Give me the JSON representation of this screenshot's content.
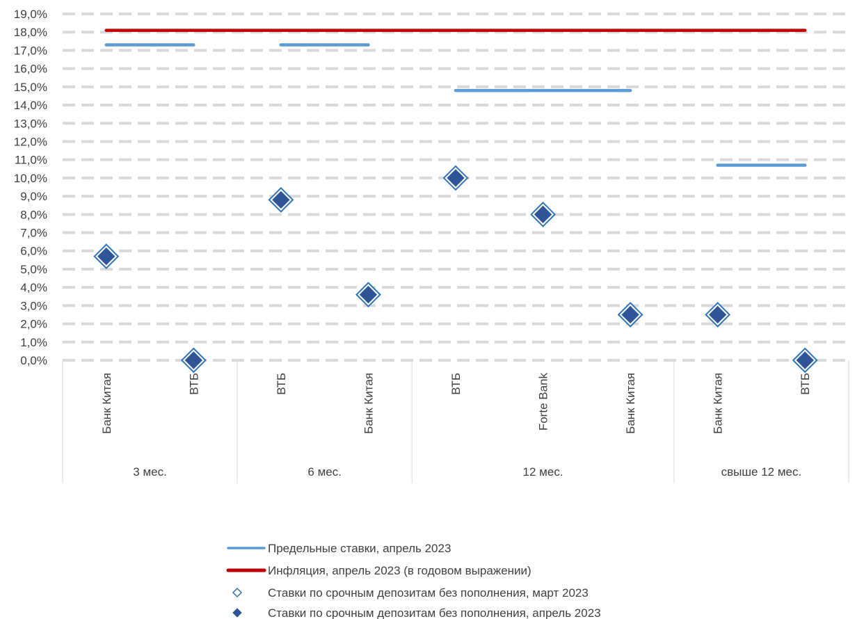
{
  "chart_data": {
    "type": "scatter",
    "ylim": [
      0,
      19
    ],
    "y_tick_step": 1,
    "y_tick_labels": [
      "0,0%",
      "1,0%",
      "2,0%",
      "3,0%",
      "4,0%",
      "5,0%",
      "6,0%",
      "7,0%",
      "8,0%",
      "9,0%",
      "10,0%",
      "11,0%",
      "12,0%",
      "13,0%",
      "14,0%",
      "15,0%",
      "16,0%",
      "17,0%",
      "18,0%",
      "19,0%"
    ],
    "grid": true,
    "grid_style": "dashed",
    "legend_placement": "bottom",
    "groups": [
      {
        "label": "3 мес.",
        "categories": [
          "Банк Китая",
          "ВТБ"
        ]
      },
      {
        "label": "6 мес.",
        "categories": [
          "ВТБ",
          "Банк Китая"
        ]
      },
      {
        "label": "12 мес.",
        "categories": [
          "ВТБ",
          "Forte Bank",
          "Банк Китая"
        ]
      },
      {
        "label": "свыше 12 мес.",
        "categories": [
          "Банк Китая",
          "ВТБ"
        ]
      }
    ],
    "categories": [
      "Банк Китая",
      "ВТБ",
      "ВТБ",
      "Банк Китая",
      "ВТБ",
      "Forte Bank",
      "Банк Китая",
      "Банк Китая",
      "ВТБ"
    ],
    "series": [
      {
        "name": "Предельные ставки, апрель 2023",
        "kind": "segment",
        "color": "#5b9bd5",
        "values": [
          17.3,
          17.3,
          17.3,
          17.3,
          14.8,
          14.8,
          14.8,
          10.7,
          10.7
        ]
      },
      {
        "name": "Инфляция, апрель 2023 (в годовом выражении)",
        "kind": "line",
        "color": "#c00000",
        "values": [
          18.1,
          18.1,
          18.1,
          18.1,
          18.1,
          18.1,
          18.1,
          18.1,
          18.1
        ]
      },
      {
        "name": "Ставки по срочным депозитам без пополнения, март 2023",
        "kind": "marker-open",
        "color": "#2e75b6",
        "values": [
          5.7,
          0.0,
          8.8,
          3.6,
          10.0,
          8.0,
          2.5,
          2.5,
          0.0
        ]
      },
      {
        "name": "Ставки по срочным депозитам без пополнения, апрель 2023",
        "kind": "marker-filled",
        "color": "#2f5597",
        "values": [
          5.7,
          0.0,
          8.8,
          3.6,
          10.0,
          8.0,
          2.5,
          2.5,
          0.0
        ]
      }
    ]
  }
}
